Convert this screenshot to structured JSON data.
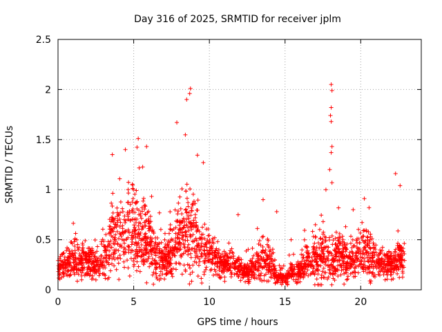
{
  "chart_data": {
    "type": "scatter",
    "title": "Day 316 of 2025, SRMTID for receiver jplm",
    "xlabel": "GPS time / hours",
    "ylabel": "SRMTID / TECUs",
    "xlim": [
      0,
      24
    ],
    "ylim": [
      0,
      2.5
    ],
    "xticks": [
      0,
      5,
      10,
      15,
      20
    ],
    "yticks": [
      0,
      0.5,
      1,
      1.5,
      2,
      2.5
    ],
    "xtick_labels": [
      "0",
      "5",
      "10",
      "15",
      "20"
    ],
    "ytick_labels": [
      "0",
      "0.5",
      "1",
      "1.5",
      "2",
      "2.5"
    ],
    "grid": true,
    "marker": "+",
    "color": "#ff0000",
    "envelope": {
      "hours": [
        0,
        0.5,
        1,
        1.5,
        2,
        2.5,
        3,
        3.5,
        4,
        4.5,
        5,
        5.5,
        6,
        6.5,
        7,
        7.5,
        8,
        8.5,
        9,
        9.5,
        10,
        10.5,
        11,
        11.5,
        12,
        12.5,
        13,
        13.5,
        14,
        14.5,
        15,
        15.5,
        16,
        16.5,
        17,
        17.5,
        18,
        18.5,
        19,
        19.5,
        20,
        20.5,
        21,
        21.5,
        22,
        22.5,
        22.9
      ],
      "median": [
        0.22,
        0.24,
        0.3,
        0.28,
        0.3,
        0.22,
        0.3,
        0.5,
        0.55,
        0.58,
        0.62,
        0.5,
        0.48,
        0.3,
        0.3,
        0.35,
        0.55,
        0.62,
        0.55,
        0.4,
        0.35,
        0.3,
        0.25,
        0.25,
        0.2,
        0.18,
        0.2,
        0.3,
        0.28,
        0.12,
        0.12,
        0.18,
        0.2,
        0.3,
        0.3,
        0.35,
        0.3,
        0.35,
        0.3,
        0.32,
        0.42,
        0.35,
        0.3,
        0.25,
        0.25,
        0.3,
        0.3
      ],
      "spread": [
        0.08,
        0.1,
        0.15,
        0.12,
        0.12,
        0.1,
        0.15,
        0.28,
        0.3,
        0.3,
        0.35,
        0.25,
        0.25,
        0.15,
        0.12,
        0.2,
        0.28,
        0.35,
        0.3,
        0.2,
        0.15,
        0.12,
        0.1,
        0.1,
        0.08,
        0.08,
        0.1,
        0.18,
        0.15,
        0.05,
        0.05,
        0.08,
        0.1,
        0.15,
        0.18,
        0.2,
        0.18,
        0.18,
        0.15,
        0.15,
        0.2,
        0.18,
        0.15,
        0.1,
        0.1,
        0.15,
        0.12
      ],
      "count": 2600,
      "seed": 316
    },
    "spikes": [
      {
        "x": 4.45,
        "y": 1.4
      },
      {
        "x": 5.3,
        "y": 1.51
      },
      {
        "x": 5.85,
        "y": 1.43
      },
      {
        "x": 7.85,
        "y": 1.67
      },
      {
        "x": 8.5,
        "y": 1.9
      },
      {
        "x": 8.75,
        "y": 2.01
      },
      {
        "x": 8.7,
        "y": 1.96
      },
      {
        "x": 9.6,
        "y": 1.27
      },
      {
        "x": 18.05,
        "y": 2.05
      },
      {
        "x": 18.1,
        "y": 1.99
      },
      {
        "x": 18.05,
        "y": 1.82
      },
      {
        "x": 18.0,
        "y": 1.74
      },
      {
        "x": 18.05,
        "y": 1.68
      },
      {
        "x": 18.1,
        "y": 1.43
      },
      {
        "x": 18.05,
        "y": 1.37
      },
      {
        "x": 17.95,
        "y": 1.2
      },
      {
        "x": 18.1,
        "y": 1.07
      },
      {
        "x": 17.7,
        "y": 1.0
      },
      {
        "x": 22.3,
        "y": 1.16
      },
      {
        "x": 22.6,
        "y": 1.04
      },
      {
        "x": 13.55,
        "y": 0.9
      },
      {
        "x": 19.5,
        "y": 0.8
      },
      {
        "x": 20.55,
        "y": 0.82
      },
      {
        "x": 14.45,
        "y": 0.78
      },
      {
        "x": 15.4,
        "y": 0.5
      },
      {
        "x": 11.9,
        "y": 0.75
      }
    ]
  }
}
